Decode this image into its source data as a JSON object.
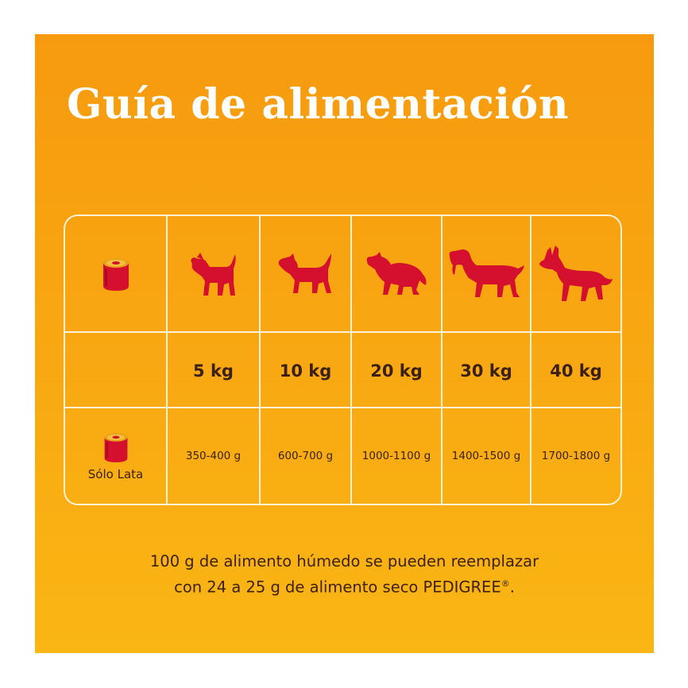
{
  "title": "Guía de alimentación",
  "colors": {
    "accent_red": "#d4102e",
    "line": "#fdf1d8",
    "text": "#3d2015"
  },
  "header_icon": "can-icon",
  "dog_icons": [
    "small-dog-icon",
    "terrier-dog-icon",
    "collie-dog-icon",
    "setter-dog-icon",
    "shepherd-dog-icon"
  ],
  "weights": [
    "5 kg",
    "10 kg",
    "20 kg",
    "30 kg",
    "40 kg"
  ],
  "product_row": {
    "icon": "can-icon",
    "label": "Sólo Lata",
    "amounts": [
      "350-400 g",
      "600-700 g",
      "1000-1100 g",
      "1400-1500 g",
      "1700-1800 g"
    ]
  },
  "footnote": {
    "line1": "100 g de alimento húmedo se pueden reemplazar",
    "line2_prefix": "con 24 a 25 g de alimento seco PEDIGREE",
    "registered": "®",
    "line2_suffix": "."
  }
}
